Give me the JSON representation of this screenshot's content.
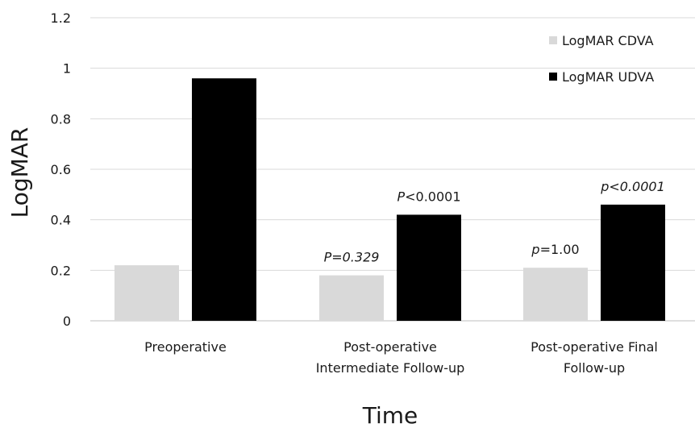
{
  "chart_data": {
    "type": "bar",
    "title": "",
    "xlabel": "Time",
    "ylabel": "LogMAR",
    "ylim": [
      0,
      1.2
    ],
    "yticks": [
      "0",
      "0.2",
      "0.4",
      "0.6",
      "0.8",
      "1",
      "1.2"
    ],
    "grid": true,
    "legend_position": "top-right",
    "categories": [
      [
        "Preoperative"
      ],
      [
        "Post-operative",
        "Intermediate Follow-up"
      ],
      [
        "Post-operative Final",
        "Follow-up"
      ]
    ],
    "series": [
      {
        "name": "LogMAR CDVA",
        "color": "#d9d9d9",
        "values": [
          0.22,
          0.18,
          0.21
        ]
      },
      {
        "name": "LogMAR UDVA",
        "color": "#000000",
        "values": [
          0.96,
          0.42,
          0.46
        ]
      }
    ],
    "annotations": [
      {
        "category_index": 1,
        "series_index": 0,
        "parts": [
          {
            "text": "P=0.329",
            "italic": true
          }
        ]
      },
      {
        "category_index": 1,
        "series_index": 1,
        "parts": [
          {
            "text": "P",
            "italic": true
          },
          {
            "text": "<0.0001",
            "italic": false
          }
        ]
      },
      {
        "category_index": 2,
        "series_index": 0,
        "parts": [
          {
            "text": "p",
            "italic": true
          },
          {
            "text": "=1.00",
            "italic": false
          }
        ]
      },
      {
        "category_index": 2,
        "series_index": 1,
        "parts": [
          {
            "text": "p<0.0001",
            "italic": true
          }
        ]
      }
    ]
  }
}
